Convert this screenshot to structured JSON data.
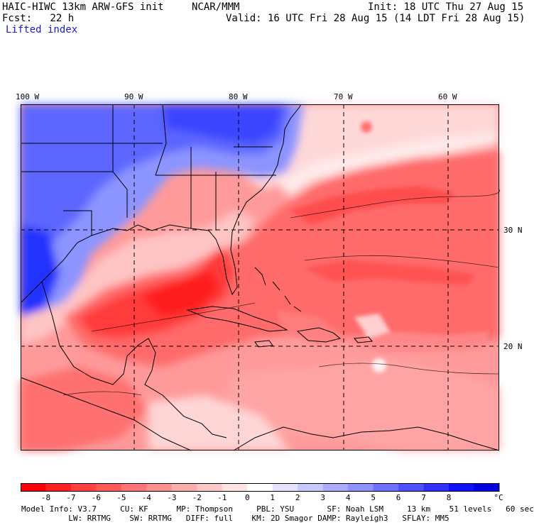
{
  "header": {
    "model": "HAIC-HIWC 13km ARW-GFS init",
    "org": "NCAR/MMM",
    "init": "Init: 18 UTC Thu 27 Aug 15",
    "fcst": "Fcst:   22 h",
    "valid": "Valid: 16 UTC Fri 28 Aug 15 (14 LDT Fri 28 Aug 15)",
    "field": "Lifted index"
  },
  "axes": {
    "lon_labels": [
      "100 W",
      "90 W",
      "80 W",
      "70 W",
      "60 W"
    ],
    "lat_labels": [
      "30 N",
      "20 N"
    ]
  },
  "colorbar": {
    "labels": [
      "-8",
      "-7",
      "-6",
      "-5",
      "-4",
      "-3",
      "-2",
      "-1",
      "0",
      "1",
      "2",
      "3",
      "4",
      "5",
      "6",
      "7",
      "8"
    ],
    "unit": "°C",
    "colors": [
      "#ff0000",
      "#ff2020",
      "#ff4040",
      "#ff5a5a",
      "#ff7474",
      "#ff9090",
      "#ffacac",
      "#ffc8c8",
      "#ffe4e4",
      "#ffffff",
      "#e4e4ff",
      "#c8c8ff",
      "#acacff",
      "#9090ff",
      "#7070ff",
      "#5050ff",
      "#3030ff",
      "#1010ff",
      "#0000e0"
    ]
  },
  "footer": {
    "line1": "Model Info: V3.7     CU: KF      MP: Thompson     PBL: YSU       SF: Noah LSM     13 km    51 levels   60 sec",
    "line2": "          LW: RRTMG    SW: RRTMG   DIFF: full    KM: 2D Smagor DAMP: Rayleigh3   SFLAY: MM5"
  },
  "map_colors": {
    "deep_red": "#ff3a3a",
    "red": "#ff6a6a",
    "light_red": "#ff9a9a",
    "pink": "#ffc4c4",
    "white": "#ffffff",
    "light_blue": "#c4c8ff",
    "blue": "#8c94ff",
    "dark_blue": "#4a54ff",
    "deepest_blue": "#2030ff"
  }
}
